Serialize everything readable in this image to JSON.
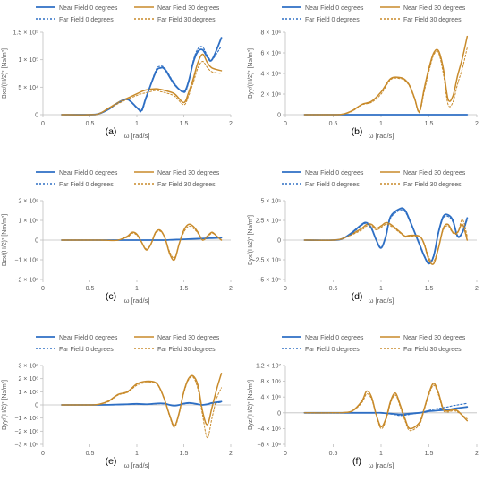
{
  "legend_entries": [
    "Near Field 0 degrees",
    "Near Field 30 degrees",
    "Far Field 0 degrees",
    "Far Field 30 degrees"
  ],
  "colors": {
    "near0": "#2e6fc4",
    "near30": "#c88a2a",
    "far0": "#2e6fc4",
    "far30": "#c88a2a",
    "axis": "#bfbfbf",
    "text": "#595959"
  },
  "chart_data": [
    {
      "type": "line",
      "panel_label": "(a)",
      "xlabel": "ω [rad/s]",
      "ylabel": "Bxx/(H/2)² [Ns/m²]",
      "xlim": [
        0,
        2
      ],
      "xticks": [
        0,
        0.5,
        1,
        1.5,
        2
      ],
      "ylim": [
        0,
        150000
      ],
      "yticks": [
        0,
        50000,
        100000,
        150000
      ],
      "ytick_labels": [
        "0",
        "5 × 10⁴",
        "1 × 10⁵",
        "1.5 × 10⁵"
      ],
      "x": [
        0.2,
        0.5,
        0.6,
        0.7,
        0.8,
        0.9,
        1.0,
        1.05,
        1.1,
        1.2,
        1.25,
        1.3,
        1.4,
        1.5,
        1.55,
        1.6,
        1.65,
        1.7,
        1.75,
        1.8,
        1.9
      ],
      "series": [
        {
          "name": "Near Field 0 degrees",
          "values": [
            0,
            0,
            2000,
            10000,
            22000,
            28000,
            13000,
            8000,
            32000,
            77000,
            85000,
            82000,
            55000,
            42000,
            60000,
            95000,
            115000,
            118000,
            105000,
            100000,
            140000
          ]
        },
        {
          "name": "Near Field 30 degrees",
          "values": [
            0,
            0,
            2000,
            12000,
            22000,
            30000,
            38000,
            42000,
            45000,
            47000,
            46000,
            44000,
            38000,
            22000,
            40000,
            65000,
            95000,
            110000,
            95000,
            85000,
            80000
          ]
        },
        {
          "name": "Far Field 0 degrees",
          "values": [
            0,
            0,
            2000,
            10000,
            21000,
            27000,
            12000,
            6000,
            30000,
            80000,
            88000,
            84000,
            57000,
            40000,
            58000,
            98000,
            120000,
            123000,
            108000,
            100000,
            125000
          ]
        },
        {
          "name": "Far Field 30 degrees",
          "values": [
            0,
            0,
            2000,
            11000,
            20000,
            28000,
            35000,
            38000,
            40000,
            44000,
            42000,
            40000,
            34000,
            18000,
            34000,
            58000,
            85000,
            97000,
            86000,
            78000,
            75000
          ]
        }
      ]
    },
    {
      "type": "line",
      "panel_label": "(b)",
      "xlabel": "ω [rad/s]",
      "ylabel": "Byy/(H/2)² [Ns/m²]",
      "xlim": [
        0,
        2
      ],
      "xticks": [
        0,
        0.5,
        1,
        1.5,
        2
      ],
      "ylim": [
        0,
        8000000
      ],
      "yticks": [
        0,
        2000000,
        4000000,
        6000000,
        8000000
      ],
      "ytick_labels": [
        "0",
        "2 × 10⁶",
        "4 × 10⁶",
        "6 × 10⁶",
        "8 × 10⁶"
      ],
      "x": [
        0.2,
        0.5,
        0.6,
        0.7,
        0.8,
        0.9,
        1.0,
        1.1,
        1.2,
        1.25,
        1.3,
        1.35,
        1.4,
        1.45,
        1.5,
        1.55,
        1.6,
        1.65,
        1.7,
        1.75,
        1.8,
        1.85,
        1.9
      ],
      "series": [
        {
          "name": "Near Field 0 degrees",
          "values": [
            0,
            0,
            0,
            0,
            0,
            0,
            0,
            0,
            0,
            0,
            0,
            0,
            0,
            0,
            0,
            0,
            0,
            0,
            0,
            0,
            0,
            0,
            0
          ]
        },
        {
          "name": "Near Field 30 degrees",
          "values": [
            0,
            0,
            50000,
            400000,
            1000000,
            1300000,
            2200000,
            3500000,
            3600000,
            3400000,
            2800000,
            1600000,
            300000,
            2500000,
            4500000,
            6000000,
            6200000,
            4500000,
            1500000,
            1800000,
            3800000,
            5500000,
            7600000
          ]
        },
        {
          "name": "Far Field 0 degrees",
          "values": [
            0,
            0,
            0,
            0,
            0,
            0,
            0,
            0,
            0,
            0,
            0,
            0,
            0,
            0,
            0,
            0,
            0,
            0,
            0,
            0,
            0,
            0,
            0
          ]
        },
        {
          "name": "Far Field 30 degrees",
          "values": [
            0,
            0,
            40000,
            350000,
            950000,
            1200000,
            2000000,
            3400000,
            3500000,
            3300000,
            2700000,
            1500000,
            200000,
            2200000,
            4200000,
            5800000,
            6000000,
            4000000,
            1000000,
            1200000,
            3000000,
            4500000,
            6500000
          ]
        }
      ]
    },
    {
      "type": "line",
      "panel_label": "(c)",
      "xlabel": "ω [rad/s]",
      "ylabel": "Bzx/(H/2)² [Nm/m²]",
      "xlim": [
        0,
        2
      ],
      "xticks": [
        0,
        0.5,
        1,
        1.5,
        2
      ],
      "ylim": [
        -2000000,
        2000000
      ],
      "yticks": [
        -2000000,
        -1000000,
        0,
        1000000,
        2000000
      ],
      "ytick_labels": [
        "−2 × 10⁶",
        "−1 × 10⁶",
        "0",
        "1 × 10⁶",
        "2 × 10⁶"
      ],
      "x": [
        0.2,
        0.6,
        0.7,
        0.8,
        0.9,
        0.95,
        1.0,
        1.05,
        1.1,
        1.15,
        1.2,
        1.25,
        1.3,
        1.35,
        1.4,
        1.45,
        1.5,
        1.55,
        1.6,
        1.65,
        1.7,
        1.75,
        1.8,
        1.85,
        1.9
      ],
      "series": [
        {
          "name": "Near Field 0 degrees",
          "values": [
            0,
            0,
            0,
            0,
            0,
            0,
            0,
            0,
            0,
            0,
            0,
            0,
            0,
            10000,
            20000,
            30000,
            40000,
            50000,
            60000,
            70000,
            80000,
            90000,
            100000,
            110000,
            120000
          ]
        },
        {
          "name": "Near Field 30 degrees",
          "values": [
            0,
            0,
            -10000,
            0,
            200000,
            400000,
            300000,
            -100000,
            -500000,
            -200000,
            400000,
            500000,
            100000,
            -700000,
            -1000000,
            -200000,
            500000,
            800000,
            700000,
            400000,
            0,
            200000,
            400000,
            200000,
            0
          ]
        },
        {
          "name": "Far Field 0 degrees",
          "values": [
            0,
            0,
            0,
            0,
            0,
            0,
            0,
            0,
            0,
            0,
            0,
            0,
            0,
            10000,
            20000,
            30000,
            40000,
            50000,
            60000,
            70000,
            80000,
            90000,
            100000,
            110000,
            120000
          ]
        },
        {
          "name": "Far Field 30 degrees",
          "values": [
            0,
            0,
            -10000,
            0,
            150000,
            350000,
            250000,
            -100000,
            -450000,
            -200000,
            350000,
            450000,
            100000,
            -600000,
            -900000,
            -200000,
            400000,
            700000,
            600000,
            350000,
            0,
            150000,
            350000,
            200000,
            0
          ]
        }
      ]
    },
    {
      "type": "line",
      "panel_label": "(d)",
      "xlabel": "ω [rad/s]",
      "ylabel": "Byx/(H/2)² [Ns/m²]",
      "xlim": [
        0,
        2
      ],
      "xticks": [
        0,
        0.5,
        1,
        1.5,
        2
      ],
      "ylim": [
        -500000,
        500000
      ],
      "yticks": [
        -500000,
        -250000,
        0,
        250000,
        500000
      ],
      "ytick_labels": [
        "−5 × 10⁵",
        "−2.5 × 10⁵",
        "0",
        "2.5 × 10⁵",
        "5 × 10⁵"
      ],
      "x": [
        0.2,
        0.5,
        0.6,
        0.7,
        0.8,
        0.85,
        0.9,
        0.95,
        1.0,
        1.05,
        1.1,
        1.2,
        1.25,
        1.3,
        1.4,
        1.45,
        1.5,
        1.55,
        1.6,
        1.65,
        1.7,
        1.75,
        1.8,
        1.85,
        1.9
      ],
      "series": [
        {
          "name": "Near Field 0 degrees",
          "values": [
            0,
            0,
            20000,
            100000,
            200000,
            220000,
            150000,
            0,
            -100000,
            50000,
            300000,
            400000,
            380000,
            250000,
            -50000,
            -200000,
            -300000,
            -200000,
            100000,
            300000,
            320000,
            250000,
            50000,
            100000,
            280000
          ]
        },
        {
          "name": "Near Field 30 degrees",
          "values": [
            0,
            0,
            20000,
            80000,
            150000,
            200000,
            200000,
            150000,
            180000,
            220000,
            200000,
            100000,
            50000,
            60000,
            50000,
            -50000,
            -250000,
            -300000,
            -100000,
            150000,
            200000,
            100000,
            100000,
            200000,
            0
          ]
        },
        {
          "name": "Far Field 0 degrees",
          "values": [
            0,
            0,
            20000,
            90000,
            190000,
            210000,
            140000,
            0,
            -90000,
            40000,
            280000,
            380000,
            360000,
            240000,
            -40000,
            -190000,
            -290000,
            -190000,
            90000,
            280000,
            300000,
            230000,
            40000,
            90000,
            260000
          ]
        },
        {
          "name": "Far Field 30 degrees",
          "values": [
            0,
            0,
            20000,
            70000,
            130000,
            180000,
            180000,
            130000,
            160000,
            200000,
            180000,
            90000,
            40000,
            50000,
            40000,
            -40000,
            -220000,
            -270000,
            -90000,
            130000,
            180000,
            90000,
            90000,
            260000,
            50000
          ]
        }
      ]
    },
    {
      "type": "line",
      "panel_label": "(e)",
      "xlabel": "ω [rad/s]",
      "ylabel": "Byy/(H/2)² [Ns/m²]",
      "xlim": [
        0,
        2
      ],
      "xticks": [
        0,
        0.5,
        1,
        1.5,
        2
      ],
      "ylim": [
        -3000000,
        3000000
      ],
      "yticks": [
        -3000000,
        -2000000,
        -1000000,
        0,
        1000000,
        2000000,
        3000000
      ],
      "ytick_labels": [
        "−3 × 10⁶",
        "−2 × 10⁶",
        "−1 × 10⁶",
        "0",
        "1 × 10⁶",
        "2 × 10⁶",
        "3 × 10⁶"
      ],
      "x": [
        0.2,
        0.5,
        0.6,
        0.7,
        0.8,
        0.9,
        1.0,
        1.1,
        1.2,
        1.25,
        1.3,
        1.35,
        1.4,
        1.45,
        1.5,
        1.55,
        1.6,
        1.65,
        1.7,
        1.75,
        1.8,
        1.85,
        1.9
      ],
      "series": [
        {
          "name": "Near Field 0 degrees",
          "values": [
            0,
            0,
            0,
            10000,
            30000,
            50000,
            80000,
            50000,
            100000,
            120000,
            100000,
            0,
            -50000,
            0,
            100000,
            150000,
            120000,
            50000,
            0,
            50000,
            150000,
            200000,
            250000
          ]
        },
        {
          "name": "Near Field 30 degrees",
          "values": [
            0,
            0,
            50000,
            300000,
            800000,
            1000000,
            1600000,
            1800000,
            1700000,
            1200000,
            300000,
            -800000,
            -1600000,
            -600000,
            1000000,
            2000000,
            2200000,
            1500000,
            -500000,
            -1500000,
            -200000,
            1200000,
            2400000
          ]
        },
        {
          "name": "Far Field 0 degrees",
          "values": [
            0,
            0,
            0,
            10000,
            20000,
            40000,
            60000,
            40000,
            80000,
            100000,
            80000,
            0,
            -40000,
            0,
            80000,
            120000,
            100000,
            40000,
            0,
            40000,
            120000,
            160000,
            200000
          ]
        },
        {
          "name": "Far Field 30 degrees",
          "values": [
            0,
            0,
            40000,
            250000,
            750000,
            950000,
            1500000,
            1700000,
            1650000,
            1150000,
            250000,
            -900000,
            -1700000,
            -700000,
            900000,
            1900000,
            2100000,
            1200000,
            -800000,
            -2500000,
            -1000000,
            500000,
            1300000
          ]
        }
      ]
    },
    {
      "type": "line",
      "panel_label": "(f)",
      "xlabel": "ω [rad/s]",
      "ylabel": "Byz/(H/2)² [Ns/m²]",
      "xlim": [
        0,
        2
      ],
      "xticks": [
        0,
        0.5,
        1,
        1.5,
        2
      ],
      "ylim": [
        -8000000,
        12000000
      ],
      "yticks": [
        -8000000,
        -4000000,
        0,
        4000000,
        8000000,
        12000000
      ],
      "ytick_labels": [
        "−8 × 10⁶",
        "−4 × 10⁶",
        "0",
        "4 × 10⁶",
        "8 × 10⁶",
        "1.2 × 10⁷"
      ],
      "x": [
        0.2,
        0.5,
        0.6,
        0.7,
        0.8,
        0.85,
        0.9,
        0.95,
        1.0,
        1.05,
        1.1,
        1.15,
        1.2,
        1.25,
        1.3,
        1.4,
        1.45,
        1.5,
        1.55,
        1.6,
        1.65,
        1.7,
        1.75,
        1.8,
        1.9
      ],
      "series": [
        {
          "name": "Near Field 0 degrees",
          "values": [
            0,
            0,
            0,
            0,
            0,
            0,
            0,
            0,
            0,
            -100000,
            -200000,
            -300000,
            -400000,
            -300000,
            -200000,
            0,
            200000,
            400000,
            500000,
            600000,
            700000,
            800000,
            1000000,
            1200000,
            1500000
          ]
        },
        {
          "name": "Near Field 30 degrees",
          "values": [
            0,
            0,
            50000,
            500000,
            3000000,
            5500000,
            4000000,
            -500000,
            -3500000,
            -1500000,
            3000000,
            5000000,
            2000000,
            -1500000,
            -4000000,
            -2500000,
            1000000,
            5000000,
            7500000,
            5000000,
            1000000,
            500000,
            800000,
            500000,
            -2000000
          ]
        },
        {
          "name": "Far Field 0 degrees",
          "values": [
            0,
            0,
            0,
            0,
            0,
            0,
            0,
            0,
            0,
            -100000,
            -300000,
            -500000,
            -700000,
            -600000,
            -400000,
            0,
            300000,
            600000,
            900000,
            1100000,
            1300000,
            1500000,
            1800000,
            2000000,
            2400000
          ]
        },
        {
          "name": "Far Field 30 degrees",
          "values": [
            0,
            0,
            50000,
            400000,
            2600000,
            4800000,
            3500000,
            -700000,
            -4000000,
            -2000000,
            2500000,
            4500000,
            1500000,
            -2000000,
            -4500000,
            -3000000,
            700000,
            4500000,
            7000000,
            4500000,
            600000,
            200000,
            500000,
            200000,
            -1500000
          ]
        }
      ]
    }
  ]
}
